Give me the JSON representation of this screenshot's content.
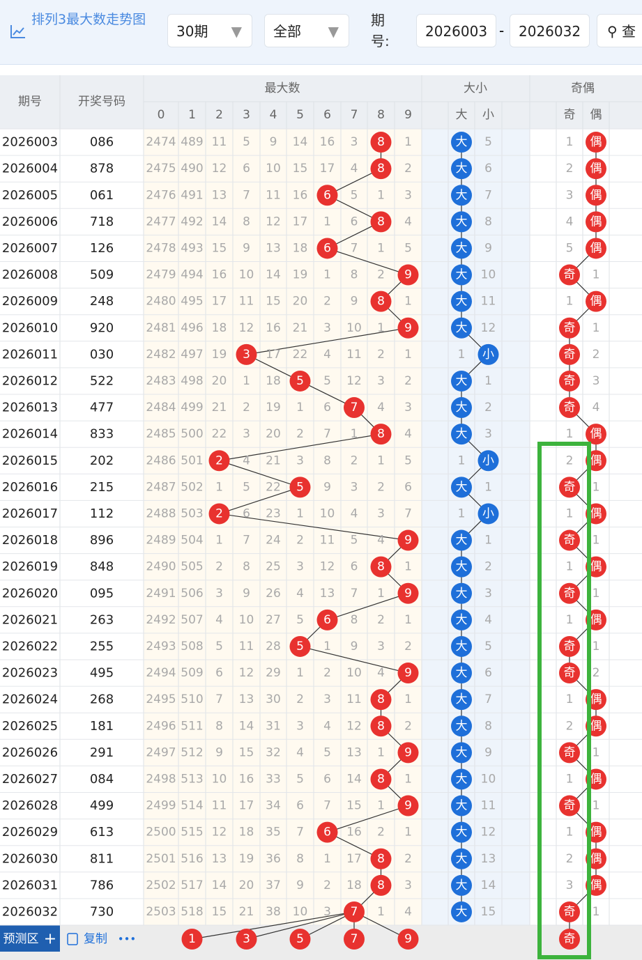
{
  "toolbar": {
    "title": "排列3最大数走势图",
    "period_select": "30期",
    "filter_select": "全部",
    "issue_label": "期号:",
    "issue_from": "2026003",
    "separator": "-",
    "issue_to": "2026032",
    "search_button": "查"
  },
  "table": {
    "headers": {
      "issue": "期号",
      "number": "开奖号码",
      "max_digit": "最大数",
      "digits": [
        "0",
        "1",
        "2",
        "3",
        "4",
        "5",
        "6",
        "7",
        "8",
        "9"
      ],
      "size": "大小",
      "size_cols": [
        "大",
        "小"
      ],
      "parity": "奇偶",
      "parity_cols": [
        "奇",
        "偶"
      ]
    },
    "rows": [
      [
        "2026003",
        "086",
        "2474",
        "489",
        "11",
        "5",
        "9",
        "14",
        "16",
        "3",
        "8",
        "1",
        "大",
        "5",
        "1",
        "偶"
      ],
      [
        "2026004",
        "878",
        "2475",
        "490",
        "12",
        "6",
        "10",
        "15",
        "17",
        "4",
        "8",
        "2",
        "大",
        "6",
        "2",
        "偶"
      ],
      [
        "2026005",
        "061",
        "2476",
        "491",
        "13",
        "7",
        "11",
        "16",
        "6",
        "5",
        "1",
        "3",
        "大",
        "7",
        "3",
        "偶"
      ],
      [
        "2026006",
        "718",
        "2477",
        "492",
        "14",
        "8",
        "12",
        "17",
        "1",
        "6",
        "8",
        "4",
        "大",
        "8",
        "4",
        "偶"
      ],
      [
        "2026007",
        "126",
        "2478",
        "493",
        "15",
        "9",
        "13",
        "18",
        "6",
        "7",
        "1",
        "5",
        "大",
        "9",
        "5",
        "偶"
      ],
      [
        "2026008",
        "509",
        "2479",
        "494",
        "16",
        "10",
        "14",
        "19",
        "1",
        "8",
        "2",
        "9",
        "大",
        "10",
        "奇",
        "1"
      ],
      [
        "2026009",
        "248",
        "2480",
        "495",
        "17",
        "11",
        "15",
        "20",
        "2",
        "9",
        "8",
        "1",
        "大",
        "11",
        "1",
        "偶"
      ],
      [
        "2026010",
        "920",
        "2481",
        "496",
        "18",
        "12",
        "16",
        "21",
        "3",
        "10",
        "1",
        "9",
        "大",
        "12",
        "奇",
        "1"
      ],
      [
        "2026011",
        "030",
        "2482",
        "497",
        "19",
        "3",
        "17",
        "22",
        "4",
        "11",
        "2",
        "1",
        "1",
        "小",
        "奇",
        "2"
      ],
      [
        "2026012",
        "522",
        "2483",
        "498",
        "20",
        "1",
        "18",
        "5",
        "5",
        "12",
        "3",
        "2",
        "大",
        "1",
        "奇",
        "3"
      ],
      [
        "2026013",
        "477",
        "2484",
        "499",
        "21",
        "2",
        "19",
        "1",
        "6",
        "7",
        "4",
        "3",
        "大",
        "2",
        "奇",
        "4"
      ],
      [
        "2026014",
        "833",
        "2485",
        "500",
        "22",
        "3",
        "20",
        "2",
        "7",
        "1",
        "8",
        "4",
        "大",
        "3",
        "1",
        "偶"
      ],
      [
        "2026015",
        "202",
        "2486",
        "501",
        "2",
        "4",
        "21",
        "3",
        "8",
        "2",
        "1",
        "5",
        "1",
        "小",
        "2",
        "偶"
      ],
      [
        "2026016",
        "215",
        "2487",
        "502",
        "1",
        "5",
        "22",
        "5",
        "9",
        "3",
        "2",
        "6",
        "大",
        "1",
        "奇",
        "1"
      ],
      [
        "2026017",
        "112",
        "2488",
        "503",
        "2",
        "6",
        "23",
        "1",
        "10",
        "4",
        "3",
        "7",
        "1",
        "小",
        "1",
        "偶"
      ],
      [
        "2026018",
        "896",
        "2489",
        "504",
        "1",
        "7",
        "24",
        "2",
        "11",
        "5",
        "4",
        "9",
        "大",
        "1",
        "奇",
        "1"
      ],
      [
        "2026019",
        "848",
        "2490",
        "505",
        "2",
        "8",
        "25",
        "3",
        "12",
        "6",
        "8",
        "1",
        "大",
        "2",
        "1",
        "偶"
      ],
      [
        "2026020",
        "095",
        "2491",
        "506",
        "3",
        "9",
        "26",
        "4",
        "13",
        "7",
        "1",
        "9",
        "大",
        "3",
        "奇",
        "1"
      ],
      [
        "2026021",
        "263",
        "2492",
        "507",
        "4",
        "10",
        "27",
        "5",
        "6",
        "8",
        "2",
        "1",
        "大",
        "4",
        "1",
        "偶"
      ],
      [
        "2026022",
        "255",
        "2493",
        "508",
        "5",
        "11",
        "28",
        "5",
        "1",
        "9",
        "3",
        "2",
        "大",
        "5",
        "奇",
        "1"
      ],
      [
        "2026023",
        "495",
        "2494",
        "509",
        "6",
        "12",
        "29",
        "1",
        "2",
        "10",
        "4",
        "9",
        "大",
        "6",
        "奇",
        "2"
      ],
      [
        "2026024",
        "268",
        "2495",
        "510",
        "7",
        "13",
        "30",
        "2",
        "3",
        "11",
        "8",
        "1",
        "大",
        "7",
        "1",
        "偶"
      ],
      [
        "2026025",
        "181",
        "2496",
        "511",
        "8",
        "14",
        "31",
        "3",
        "4",
        "12",
        "8",
        "2",
        "大",
        "8",
        "2",
        "偶"
      ],
      [
        "2026026",
        "291",
        "2497",
        "512",
        "9",
        "15",
        "32",
        "4",
        "5",
        "13",
        "1",
        "9",
        "大",
        "9",
        "奇",
        "1"
      ],
      [
        "2026027",
        "084",
        "2498",
        "513",
        "10",
        "16",
        "33",
        "5",
        "6",
        "14",
        "8",
        "1",
        "大",
        "10",
        "1",
        "偶"
      ],
      [
        "2026028",
        "499",
        "2499",
        "514",
        "11",
        "17",
        "34",
        "6",
        "7",
        "15",
        "1",
        "9",
        "大",
        "11",
        "奇",
        "1"
      ],
      [
        "2026029",
        "613",
        "2500",
        "515",
        "12",
        "18",
        "35",
        "7",
        "6",
        "16",
        "2",
        "1",
        "大",
        "12",
        "1",
        "偶"
      ],
      [
        "2026030",
        "811",
        "2501",
        "516",
        "13",
        "19",
        "36",
        "8",
        "1",
        "17",
        "8",
        "2",
        "大",
        "13",
        "2",
        "偶"
      ],
      [
        "2026031",
        "786",
        "2502",
        "517",
        "14",
        "20",
        "37",
        "9",
        "2",
        "18",
        "8",
        "3",
        "大",
        "14",
        "3",
        "偶"
      ],
      [
        "2026032",
        "730",
        "2503",
        "518",
        "15",
        "21",
        "38",
        "10",
        "3",
        "7",
        "1",
        "4",
        "大",
        "15",
        "奇",
        "1"
      ]
    ]
  },
  "prediction": {
    "label": "预测区",
    "add": "+",
    "copy": "复制",
    "more": "•••",
    "digits": [
      "1",
      "3",
      "5",
      "7",
      "9"
    ],
    "parity": "奇"
  }
}
